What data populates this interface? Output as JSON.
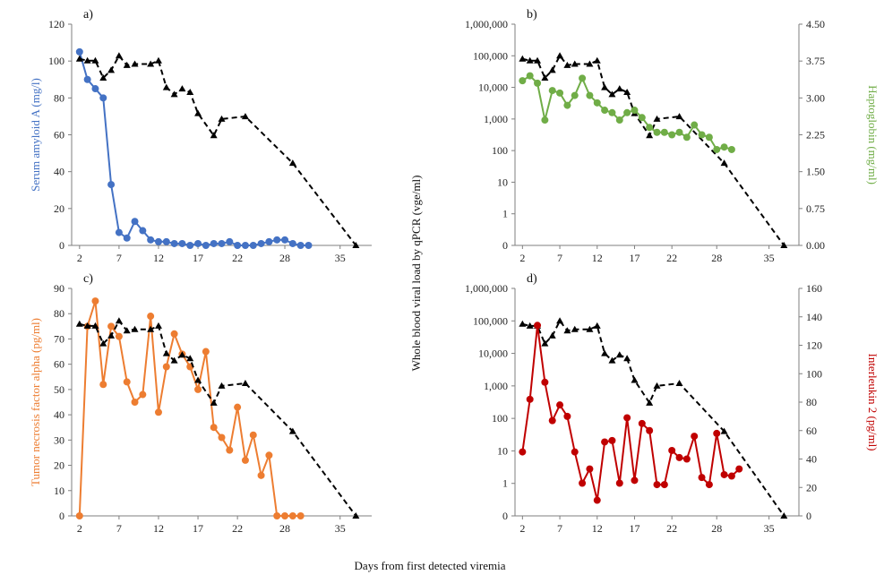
{
  "shared": {
    "xlabel": "Days from first detected viremia",
    "center_ylabel": "Whole blood viral load by qPCR (vge/ml)"
  },
  "colors": {
    "saa": "#4472c4",
    "hapto": "#70ad47",
    "tnf": "#ed7d31",
    "il2": "#c00000",
    "viral": "#000000"
  },
  "chart_data": [
    {
      "panel": "a)",
      "type": "line",
      "ylabel": "Serum amyloid A (mg/l)",
      "ylim": [
        0,
        120
      ],
      "yticks": [
        "0",
        "20",
        "40",
        "60",
        "80",
        "100",
        "120"
      ],
      "xlim": [
        1,
        39
      ],
      "xticks": [
        "2",
        "7",
        "12",
        "17",
        "22",
        "28",
        "35"
      ],
      "series": [
        {
          "name": "Serum amyloid A (mg/l)",
          "marker": "circle",
          "style": "solid",
          "x": [
            2,
            3,
            4,
            5,
            6,
            7,
            8,
            9,
            10,
            11,
            12,
            13,
            14,
            15,
            16,
            17,
            18,
            19,
            20,
            21,
            22,
            23,
            24,
            25,
            26,
            27,
            28,
            29,
            30,
            31
          ],
          "y": [
            105,
            90,
            85,
            80,
            33,
            7,
            4,
            13,
            8,
            3,
            2,
            2,
            1,
            1,
            0,
            1,
            0,
            1,
            1,
            2,
            0,
            0,
            0,
            1,
            2,
            3,
            3,
            1,
            0,
            0
          ]
        },
        {
          "name": "Whole blood viral load by qPCR (vge/ml)",
          "marker": "triangle",
          "style": "dashed",
          "x": [
            2,
            3,
            4,
            5,
            6,
            7,
            8,
            9,
            11,
            12,
            13,
            14,
            15,
            16,
            17,
            19,
            20,
            23,
            29,
            37
          ],
          "y": [
            80000,
            70000,
            70000,
            20000,
            35000,
            100000,
            50000,
            55000,
            55000,
            70000,
            10000,
            6000,
            9000,
            7000,
            1500,
            300,
            1000,
            1200,
            40,
            0
          ]
        }
      ],
      "secondary_axis": {
        "label": "",
        "ticks": []
      }
    },
    {
      "panel": "b)",
      "type": "line",
      "ylabel": "",
      "ylim": [
        0,
        1000000
      ],
      "yticks": [
        "0",
        "1",
        "10",
        "100",
        "1,000",
        "10,000",
        "100,000",
        "1,000,000"
      ],
      "xlim": [
        1,
        39
      ],
      "xticks": [
        "2",
        "7",
        "12",
        "17",
        "22",
        "28",
        "35"
      ],
      "secondary_axis": {
        "label": "Haptoglobin (mg/ml)",
        "ylim": [
          0,
          4.5
        ],
        "ticks": [
          "0.00",
          "0.75",
          "1.50",
          "2.25",
          "3.00",
          "3.75",
          "4.50"
        ]
      },
      "series": [
        {
          "name": "Whole blood viral load by qPCR (vge/ml)",
          "marker": "triangle",
          "style": "dashed",
          "axis": "left",
          "x": [
            2,
            3,
            4,
            5,
            6,
            7,
            8,
            9,
            11,
            12,
            13,
            14,
            15,
            16,
            17,
            19,
            20,
            23,
            29,
            37
          ],
          "y": [
            80000,
            70000,
            70000,
            20000,
            35000,
            100000,
            50000,
            55000,
            55000,
            70000,
            10000,
            6000,
            9000,
            7000,
            1500,
            300,
            1000,
            1200,
            40,
            0
          ]
        },
        {
          "name": "Haptoglobin (mg/ml)",
          "marker": "circle",
          "style": "solid",
          "axis": "right",
          "x": [
            2,
            3,
            4,
            5,
            6,
            7,
            8,
            9,
            10,
            11,
            12,
            13,
            14,
            15,
            16,
            17,
            18,
            19,
            20,
            21,
            22,
            23,
            24,
            25,
            26,
            27,
            28,
            29,
            30
          ],
          "y": [
            3.35,
            3.45,
            3.3,
            2.55,
            3.15,
            3.1,
            2.85,
            3.05,
            3.4,
            3.05,
            2.9,
            2.75,
            2.7,
            2.55,
            2.7,
            2.75,
            2.6,
            2.4,
            2.3,
            2.3,
            2.25,
            2.3,
            2.2,
            2.45,
            2.25,
            2.2,
            1.95,
            2.0,
            1.95
          ]
        }
      ]
    },
    {
      "panel": "c)",
      "type": "line",
      "ylabel": "Tumor necrosis factor alpha (pg/ml)",
      "ylim": [
        0,
        90
      ],
      "yticks": [
        "0",
        "10",
        "20",
        "30",
        "40",
        "50",
        "60",
        "70",
        "80",
        "90"
      ],
      "xlim": [
        1,
        39
      ],
      "xticks": [
        "2",
        "7",
        "12",
        "17",
        "22",
        "28",
        "35"
      ],
      "series": [
        {
          "name": "Tumor necrosis factor alpha (pg/ml)",
          "marker": "circle",
          "style": "solid",
          "x": [
            2,
            3,
            4,
            5,
            6,
            7,
            8,
            9,
            10,
            11,
            12,
            13,
            14,
            15,
            16,
            17,
            18,
            19,
            20,
            21,
            22,
            23,
            24,
            25,
            26,
            27,
            28,
            29,
            30
          ],
          "y": [
            0,
            75,
            85,
            52,
            75,
            71,
            53,
            45,
            48,
            79,
            41,
            59,
            72,
            64,
            59,
            50,
            65,
            35,
            31,
            26,
            43,
            22,
            32,
            16,
            24,
            0,
            0,
            0,
            0
          ]
        },
        {
          "name": "Whole blood viral load by qPCR (vge/ml)",
          "marker": "triangle",
          "style": "dashed",
          "x": [
            2,
            3,
            4,
            5,
            6,
            7,
            8,
            9,
            11,
            12,
            13,
            14,
            15,
            16,
            17,
            19,
            20,
            23,
            29,
            37
          ],
          "y": [
            80000,
            70000,
            70000,
            20000,
            35000,
            100000,
            50000,
            55000,
            55000,
            70000,
            10000,
            6000,
            9000,
            7000,
            1500,
            300,
            1000,
            1200,
            40,
            0
          ]
        }
      ],
      "secondary_axis": {
        "label": "",
        "ticks": []
      }
    },
    {
      "panel": "d)",
      "type": "line",
      "ylabel": "",
      "ylim": [
        0,
        1000000
      ],
      "yticks": [
        "0",
        "1",
        "10",
        "100",
        "1,000",
        "10,000",
        "100,000",
        "1,000,000"
      ],
      "xlim": [
        1,
        39
      ],
      "xticks": [
        "2",
        "7",
        "12",
        "17",
        "22",
        "28",
        "35"
      ],
      "secondary_axis": {
        "label": "Interleukin 2 (pg/ml)",
        "ylim": [
          0,
          160
        ],
        "ticks": [
          "0",
          "20",
          "40",
          "60",
          "80",
          "100",
          "120",
          "140",
          "160"
        ]
      },
      "series": [
        {
          "name": "Whole blood viral load by qPCR (vge/ml)",
          "marker": "triangle",
          "style": "dashed",
          "axis": "left",
          "x": [
            2,
            3,
            4,
            5,
            6,
            7,
            8,
            9,
            11,
            12,
            13,
            14,
            15,
            16,
            17,
            19,
            20,
            23,
            29,
            37
          ],
          "y": [
            80000,
            70000,
            70000,
            20000,
            35000,
            100000,
            50000,
            55000,
            55000,
            70000,
            10000,
            6000,
            9000,
            7000,
            1500,
            300,
            1000,
            1200,
            40,
            0
          ]
        },
        {
          "name": "Interleukin 2 (pg/ml)",
          "marker": "circle",
          "style": "solid",
          "axis": "right",
          "x": [
            2,
            3,
            4,
            5,
            6,
            7,
            8,
            9,
            10,
            11,
            12,
            13,
            14,
            15,
            16,
            17,
            18,
            19,
            20,
            21,
            22,
            23,
            24,
            25,
            26,
            27,
            28,
            29,
            30,
            31
          ],
          "y": [
            45,
            82,
            134,
            94,
            67,
            78,
            70,
            45,
            23,
            33,
            11,
            52,
            53,
            23,
            69,
            25,
            65,
            60,
            22,
            22,
            46,
            41,
            40,
            56,
            27,
            22,
            58,
            29,
            28,
            33
          ]
        }
      ]
    }
  ]
}
